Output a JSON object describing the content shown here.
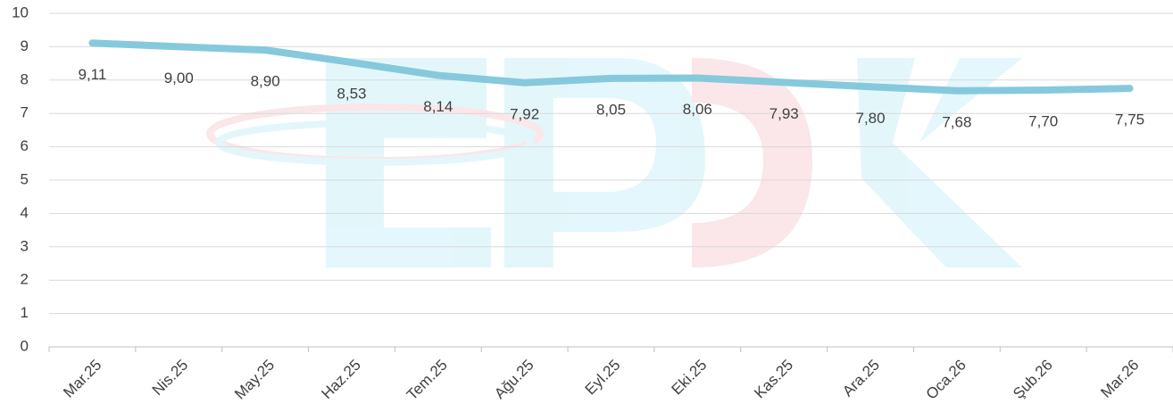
{
  "chart_data": {
    "type": "line",
    "categories": [
      "Mar.25",
      "Nis.25",
      "May.25",
      "Haz.25",
      "Tem.25",
      "Ağu.25",
      "Eyl.25",
      "Eki.25",
      "Kas.25",
      "Ara.25",
      "Oca.26",
      "Şub.26",
      "Mar.26"
    ],
    "values": [
      9.11,
      9.0,
      8.9,
      8.53,
      8.14,
      7.92,
      8.05,
      8.06,
      7.93,
      7.8,
      7.68,
      7.7,
      7.75
    ],
    "value_labels": [
      "9,11",
      "9,00",
      "8,90",
      "8,53",
      "8,14",
      "7,92",
      "8,05",
      "8,06",
      "7,93",
      "7,80",
      "7,68",
      "7,70",
      "7,75"
    ],
    "color": "#86c9dd",
    "ylim": [
      0,
      10
    ],
    "yticks": [
      0,
      1,
      2,
      3,
      4,
      5,
      6,
      7,
      8,
      9,
      10
    ],
    "grid": true
  }
}
